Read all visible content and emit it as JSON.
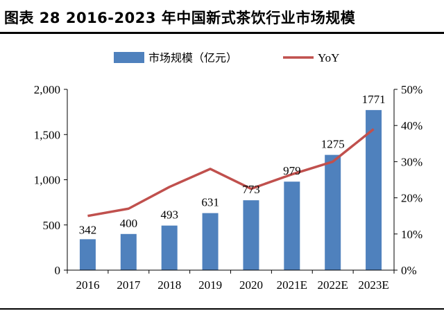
{
  "title": "图表 28 2016-2023 年中国新式茶饮行业市场规模",
  "colors": {
    "bar": "#4f81bd",
    "line": "#c0504d",
    "axis": "#000000"
  },
  "chart_data": {
    "type": "bar",
    "categories": [
      "2016",
      "2017",
      "2018",
      "2019",
      "2020",
      "2021E",
      "2022E",
      "2023E"
    ],
    "series": [
      {
        "name": "市场规模（亿元）",
        "type": "bar",
        "axis": "left",
        "values": [
          342,
          400,
          493,
          631,
          773,
          979,
          1275,
          1771
        ],
        "labels": [
          "342",
          "400",
          "493",
          "631",
          "773",
          "979",
          "1275",
          "1771"
        ]
      },
      {
        "name": "YoY",
        "type": "line",
        "axis": "right",
        "values": [
          0.15,
          0.17,
          0.23,
          0.28,
          0.225,
          0.265,
          0.3,
          0.39
        ]
      }
    ],
    "ylim": [
      0,
      2000
    ],
    "yticks": [
      0,
      500,
      1000,
      1500,
      2000
    ],
    "ytick_labels": [
      "0",
      "500",
      "1,000",
      "1,500",
      "2,000"
    ],
    "y2lim": [
      0,
      0.5
    ],
    "y2ticks": [
      0,
      0.1,
      0.2,
      0.3,
      0.4,
      0.5
    ],
    "y2tick_labels": [
      "0%",
      "10%",
      "20%",
      "30%",
      "40%",
      "50%"
    ],
    "legend_position": "top-center",
    "grid": false
  }
}
